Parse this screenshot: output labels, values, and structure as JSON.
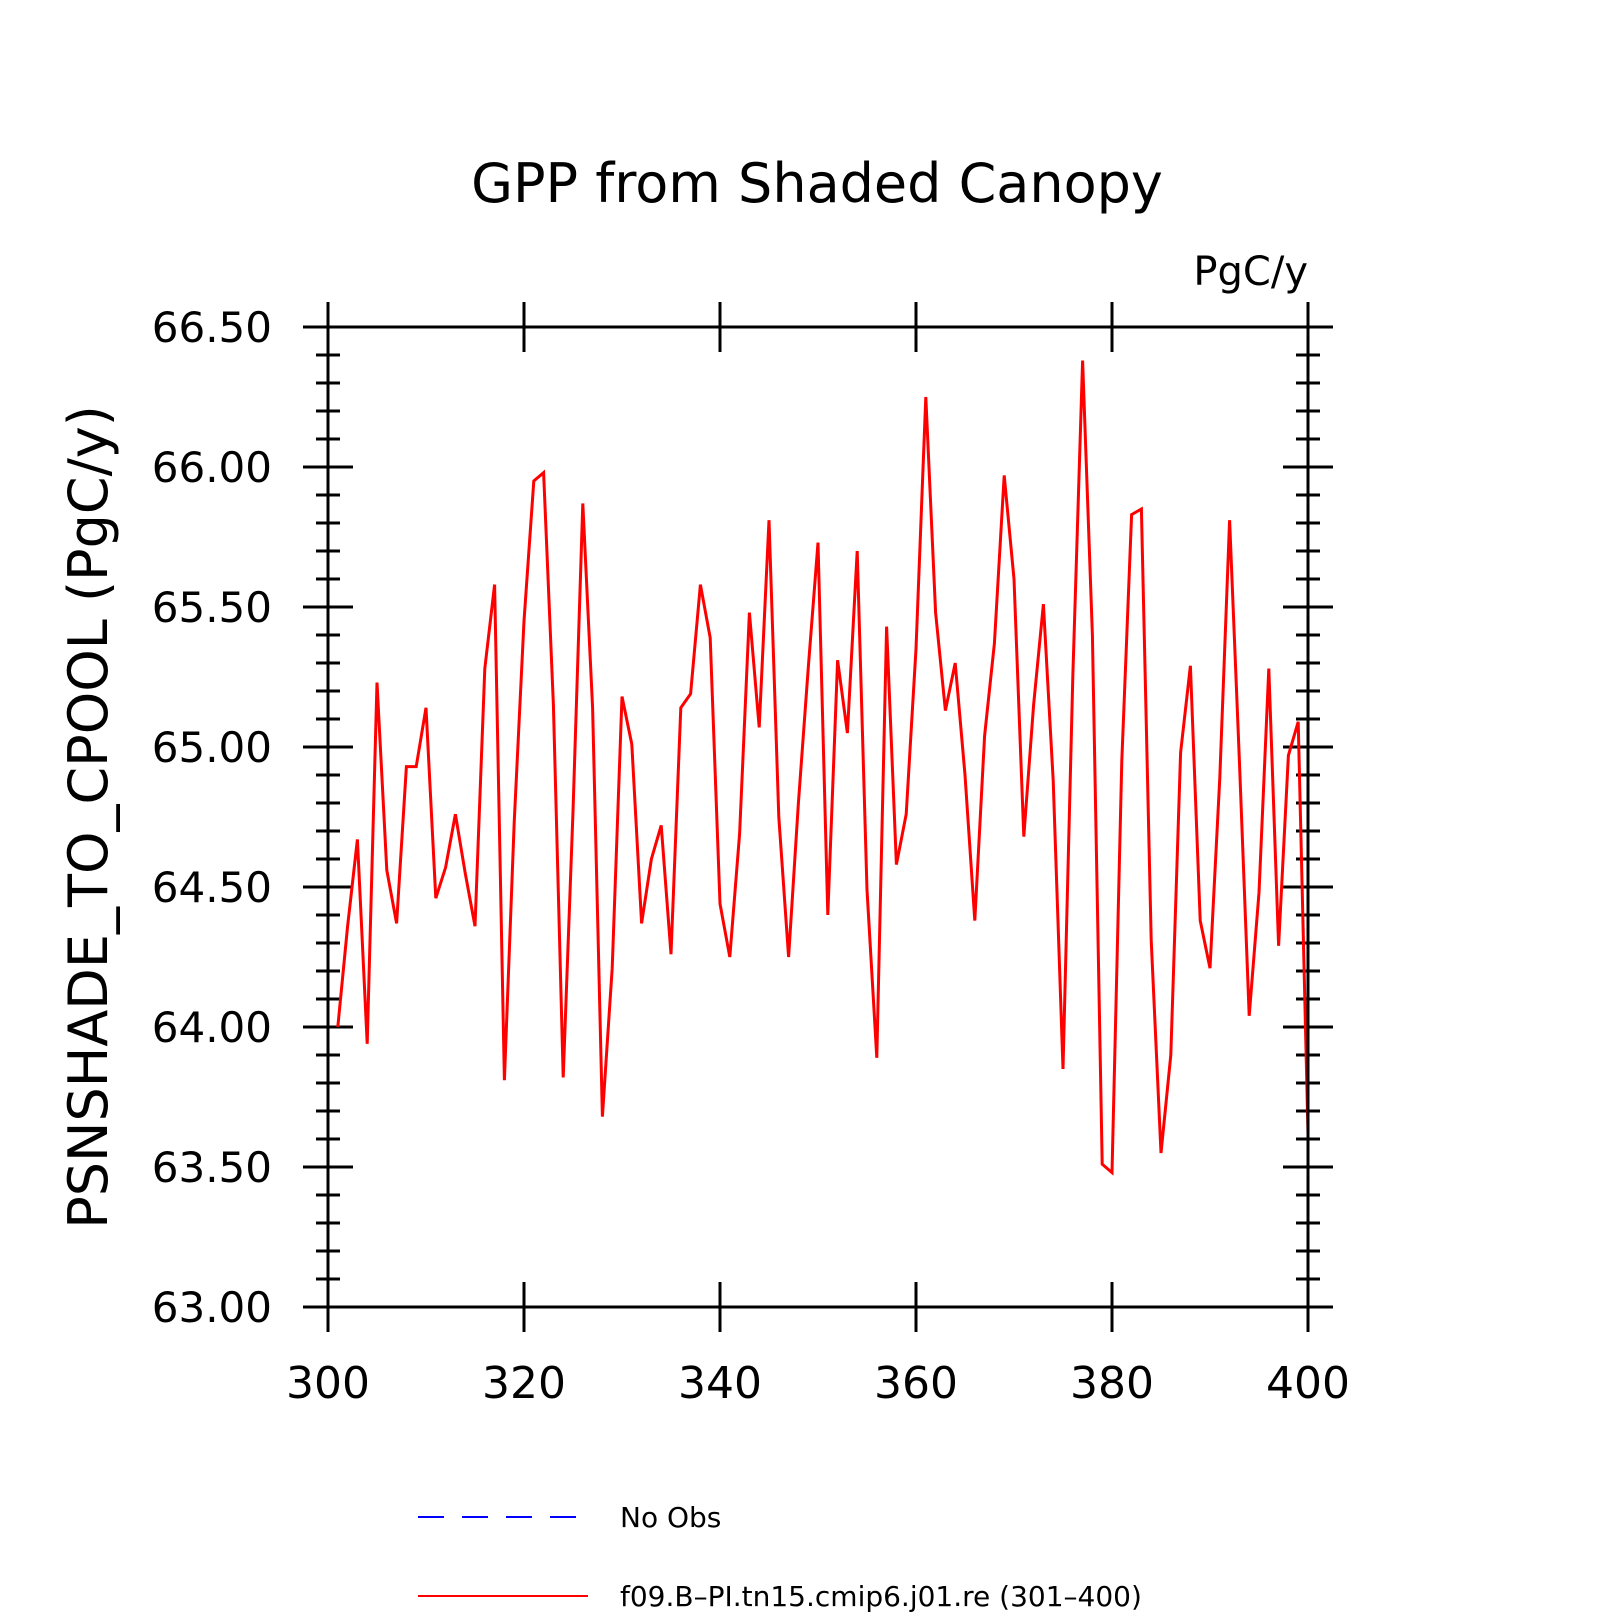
{
  "chart_data": {
    "type": "line",
    "title": "GPP from Shaded Canopy",
    "units_label": "PgC/y",
    "ylabel": "PSNSHADE_TO_CPOOL  (PgC/y)",
    "xlabel": "",
    "xlim": [
      300,
      400
    ],
    "ylim": [
      63.0,
      66.5
    ],
    "x_major_ticks": [
      300,
      320,
      340,
      360,
      380,
      400
    ],
    "x_tick_labels": [
      "300",
      "320",
      "340",
      "360",
      "380",
      "400"
    ],
    "y_major_ticks": [
      63.0,
      63.5,
      64.0,
      64.5,
      65.0,
      65.5,
      66.0,
      66.5
    ],
    "y_tick_labels": [
      "63.00",
      "63.50",
      "64.00",
      "64.50",
      "65.00",
      "65.50",
      "66.00",
      "66.50"
    ],
    "y_minor_step": 0.1,
    "grid": false,
    "legend_position": "bottom",
    "legend": [
      {
        "label": "No Obs",
        "color": "#0000ff",
        "style": "dashed"
      },
      {
        "label": "f09.B–PI.tn15.cmip6.j01.re (301–400)",
        "color": "#ff0000",
        "style": "solid"
      }
    ],
    "series": [
      {
        "name": "f09.B–PI.tn15.cmip6.j01.re (301–400)",
        "color": "#ff0000",
        "x": [
          301,
          302,
          303,
          304,
          305,
          306,
          307,
          308,
          309,
          310,
          311,
          312,
          313,
          314,
          315,
          316,
          317,
          318,
          319,
          320,
          321,
          322,
          323,
          324,
          325,
          326,
          327,
          328,
          329,
          330,
          331,
          332,
          333,
          334,
          335,
          336,
          337,
          338,
          339,
          340,
          341,
          342,
          343,
          344,
          345,
          346,
          347,
          348,
          349,
          350,
          351,
          352,
          353,
          354,
          355,
          356,
          357,
          358,
          359,
          360,
          361,
          362,
          363,
          364,
          365,
          366,
          367,
          368,
          369,
          370,
          371,
          372,
          373,
          374,
          375,
          376,
          377,
          378,
          379,
          380,
          381,
          382,
          383,
          384,
          385,
          386,
          387,
          388,
          389,
          390,
          391,
          392,
          393,
          394,
          395,
          396,
          397,
          398,
          399,
          400
        ],
        "values": [
          64.0,
          64.36,
          64.67,
          63.94,
          65.23,
          64.56,
          64.37,
          64.93,
          64.93,
          65.14,
          64.46,
          64.57,
          64.76,
          64.55,
          64.36,
          65.28,
          65.58,
          63.81,
          64.73,
          65.45,
          65.95,
          65.98,
          65.15,
          63.82,
          64.77,
          65.87,
          65.14,
          63.68,
          64.21,
          65.18,
          65.01,
          64.37,
          64.6,
          64.72,
          64.26,
          65.14,
          65.19,
          65.58,
          65.39,
          64.44,
          64.25,
          64.69,
          65.48,
          65.07,
          65.81,
          64.75,
          64.25,
          64.8,
          65.28,
          65.73,
          64.4,
          65.31,
          65.05,
          65.7,
          64.49,
          63.89,
          65.43,
          64.58,
          64.76,
          65.35,
          66.25,
          65.48,
          65.13,
          65.3,
          64.9,
          64.38,
          65.04,
          65.37,
          65.97,
          65.6,
          64.68,
          65.15,
          65.51,
          64.88,
          63.85,
          65.25,
          66.38,
          65.4,
          63.51,
          63.48,
          64.95,
          65.83,
          65.85,
          64.31,
          63.55,
          63.9,
          64.98,
          65.29,
          64.38,
          64.21,
          64.89,
          65.81,
          64.95,
          64.04,
          64.48,
          65.28,
          64.29,
          64.97,
          65.09,
          63.62
        ]
      }
    ]
  }
}
